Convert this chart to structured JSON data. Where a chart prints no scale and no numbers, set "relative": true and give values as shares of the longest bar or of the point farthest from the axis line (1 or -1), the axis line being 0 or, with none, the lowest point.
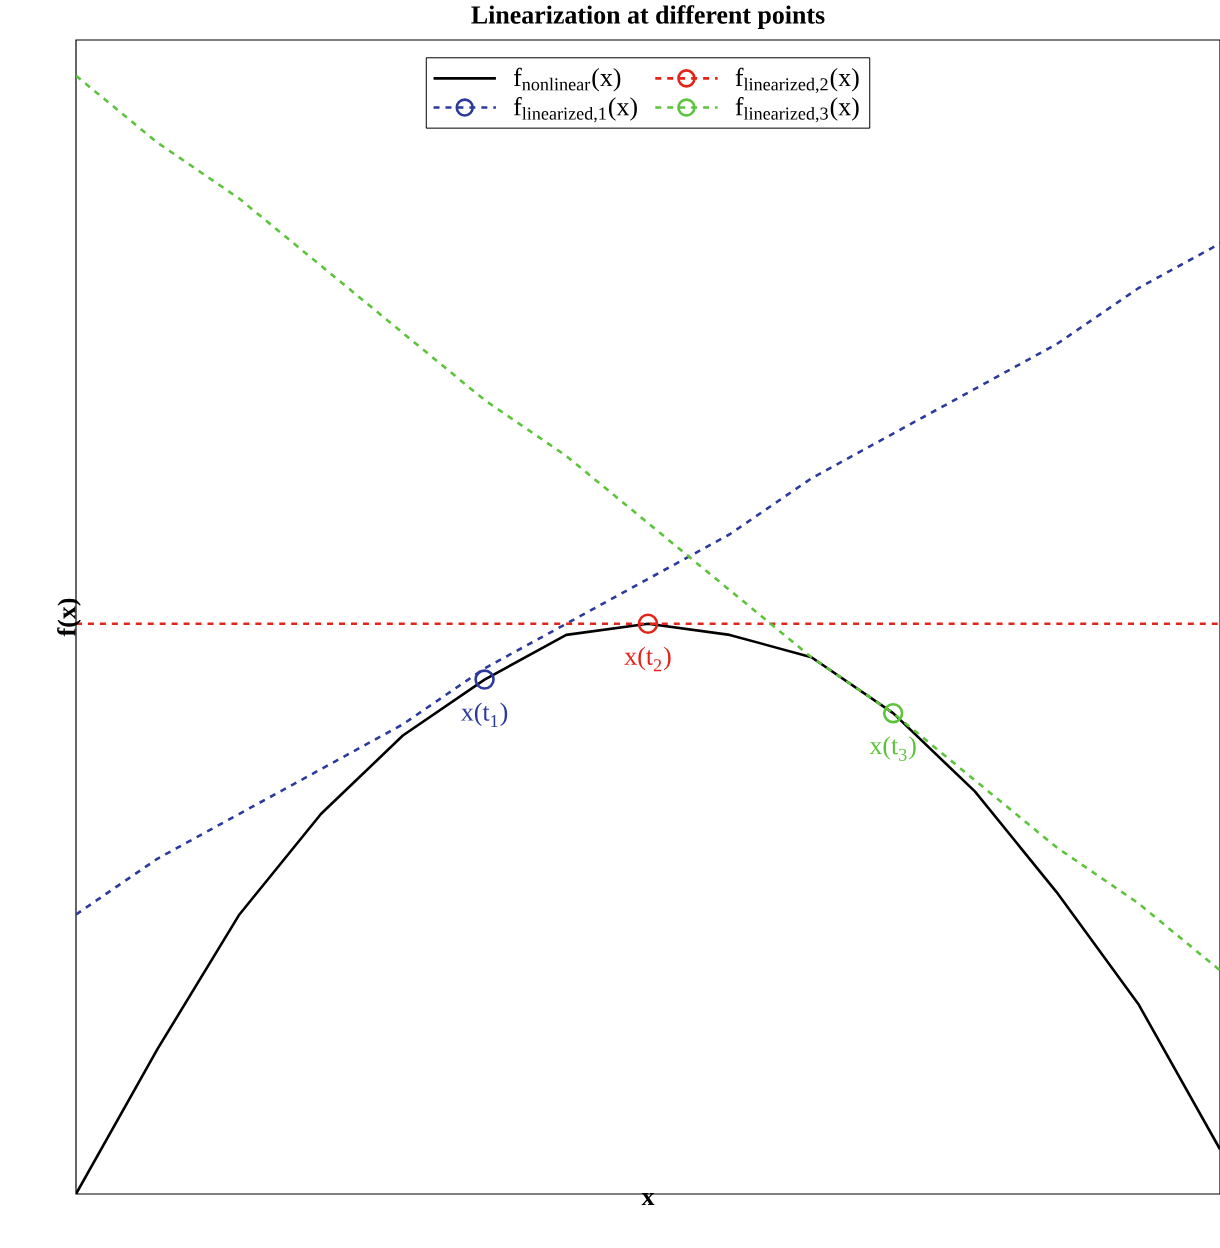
{
  "chart_data": {
    "type": "line",
    "relative": true,
    "title": "Linearization at different points",
    "xlabel": "x",
    "ylabel": "f(x)",
    "legend": "top",
    "categories": [
      null,
      null,
      null,
      null,
      null,
      null,
      null,
      null,
      null,
      null,
      null,
      null,
      null,
      null,
      null
    ],
    "series": [
      {
        "name": "\\textrm{f}_{\\textrm{nonlinear}}\\textrm{(x)}",
        "color": "#000000",
        "line_style": "solid",
        "values": [
          0,
          0.13,
          0.25,
          0.34,
          0.41,
          0.46,
          0.5,
          0.51,
          0.5,
          0.48,
          0.43,
          0.36,
          0.27,
          0.17,
          0.04
        ]
      },
      {
        "name": "\\textrm{f}_{\\textrm{linearized,1}}\\textrm{(x)}",
        "color": "#2b3a9c",
        "line_style": "dashed",
        "values": [
          0.25,
          0.3,
          0.34,
          0.38,
          0.42,
          0.47,
          0.51,
          0.55,
          0.59,
          0.64,
          0.68,
          0.72,
          0.76,
          0.81,
          0.85
        ]
      },
      {
        "name": "\\textrm{f}_{\\textrm{linearized,2}}\\textrm{(x)}",
        "color": "#e3241b",
        "line_style": "dashed",
        "values": [
          0.51,
          0.51,
          0.51,
          0.51,
          0.51,
          0.51,
          0.51,
          0.51,
          0.51,
          0.51,
          0.51,
          0.51,
          0.51,
          0.51,
          0.51
        ]
      },
      {
        "name": "\\textrm{f}_{\\textrm{linearized,3}}\\textrm{(x)}",
        "color": "#5cc43a",
        "line_style": "dashed",
        "values": [
          1,
          0.94,
          0.89,
          0.83,
          0.77,
          0.71,
          0.66,
          0.6,
          0.54,
          0.48,
          0.43,
          0.37,
          0.31,
          0.26,
          0.2
        ]
      },
      {
        "name": "\\textrm{x(t}_{\\textrm{1}}\\textrm{)}",
        "color": "#2b3a9c",
        "marker": "circle",
        "values": [
          null,
          null,
          null,
          null,
          null,
          0.46,
          null,
          null,
          null,
          null,
          null,
          null,
          null,
          null,
          null
        ]
      },
      {
        "name": "\\textrm{x(t}_{\\textrm{2}}\\textrm{)}",
        "color": "#e3241b",
        "marker": "circle",
        "values": [
          null,
          null,
          null,
          null,
          null,
          null,
          null,
          0.51,
          null,
          null,
          null,
          null,
          null,
          null,
          null
        ]
      },
      {
        "name": "\\textrm{x(t}_{\\textrm{3}}\\textrm{)}",
        "color": "#5cc43a",
        "marker": "circle",
        "values": [
          null,
          null,
          null,
          null,
          null,
          null,
          null,
          null,
          null,
          null,
          0.43,
          null,
          null,
          null,
          null
        ]
      }
    ]
  }
}
